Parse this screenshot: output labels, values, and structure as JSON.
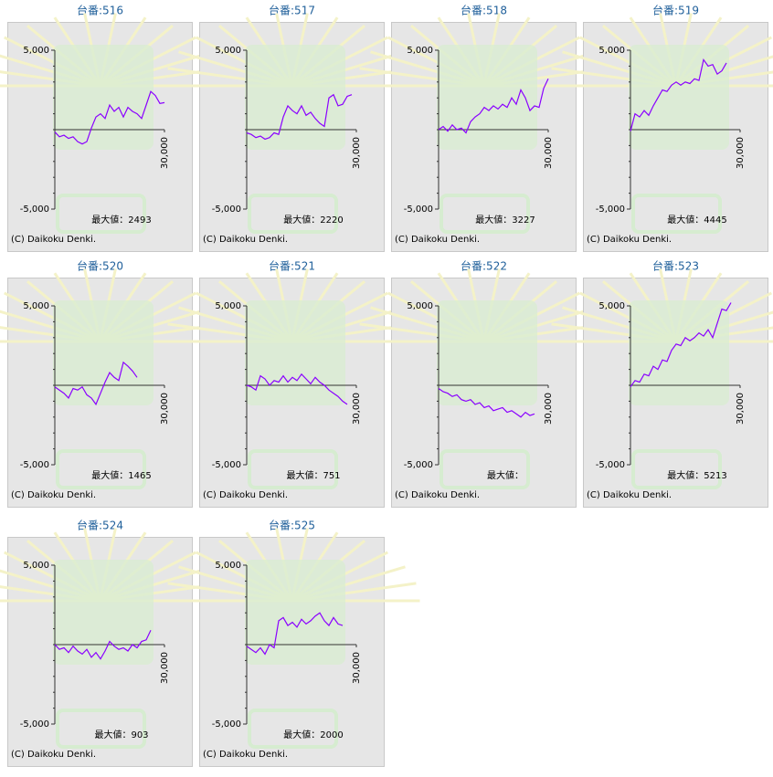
{
  "chart_data": [
    {
      "type": "line",
      "title": "台番:516",
      "annotation": "最大値：2493",
      "copyright": "(C) Daikoku Denki.",
      "color": "#8a00ff",
      "xlim": [
        0,
        30000
      ],
      "xticks": [
        {
          "value": 30000,
          "label": "30,000"
        }
      ],
      "ylim": [
        -5000,
        5000
      ],
      "yticks": [
        {
          "value": 5000,
          "label": "5,000"
        },
        {
          "value": -5000,
          "label": "-5,000"
        }
      ],
      "x": [
        0,
        1250,
        2500,
        3750,
        5000,
        6250,
        7500,
        8750,
        10000,
        11250,
        12500,
        13750,
        15000,
        16250,
        17500,
        18750,
        20000,
        21250,
        22500,
        23750,
        25000,
        26250,
        27500,
        28750,
        30000
      ],
      "values": [
        -150,
        -450,
        -350,
        -550,
        -450,
        -750,
        -900,
        -750,
        100,
        800,
        1000,
        700,
        1550,
        1150,
        1400,
        800,
        1400,
        1150,
        1000,
        700,
        1550,
        2400,
        2150,
        1650,
        1700
      ]
    },
    {
      "type": "line",
      "title": "台番:517",
      "annotation": "最大値：2220",
      "copyright": "(C) Daikoku Denki.",
      "color": "#8a00ff",
      "xlim": [
        0,
        30000
      ],
      "xticks": [
        {
          "value": 30000,
          "label": "30,000"
        }
      ],
      "ylim": [
        -5000,
        5000
      ],
      "yticks": [
        {
          "value": 5000,
          "label": "5,000"
        },
        {
          "value": -5000,
          "label": "-5,000"
        }
      ],
      "x": [
        0,
        1250,
        2500,
        3750,
        5000,
        6250,
        7500,
        8750,
        10000,
        11250,
        12500,
        13750,
        15000,
        16250,
        17500,
        18750,
        20000,
        21250,
        22500,
        23750,
        25000,
        26250,
        27500,
        28750
      ],
      "values": [
        -200,
        -300,
        -500,
        -400,
        -600,
        -500,
        -200,
        -300,
        800,
        1500,
        1200,
        1000,
        1500,
        900,
        1100,
        700,
        400,
        200,
        2000,
        2200,
        1500,
        1600,
        2100,
        2200
      ]
    },
    {
      "type": "line",
      "title": "台番:518",
      "annotation": "最大値：3227",
      "copyright": "(C) Daikoku Denki.",
      "color": "#8a00ff",
      "xlim": [
        0,
        30000
      ],
      "xticks": [
        {
          "value": 30000,
          "label": "30,000"
        }
      ],
      "ylim": [
        -5000,
        5000
      ],
      "yticks": [
        {
          "value": 5000,
          "label": "5,000"
        },
        {
          "value": -5000,
          "label": "-5,000"
        }
      ],
      "x": [
        0,
        1250,
        2500,
        3750,
        5000,
        6250,
        7500,
        8750,
        10000,
        11250,
        12500,
        13750,
        15000,
        16250,
        17500,
        18750,
        20000,
        21250,
        22500,
        23750,
        25000,
        26250,
        27500,
        28750,
        30000
      ],
      "values": [
        0,
        200,
        -100,
        300,
        0,
        100,
        -200,
        500,
        800,
        1000,
        1400,
        1200,
        1500,
        1300,
        1600,
        1400,
        2000,
        1600,
        2500,
        2000,
        1200,
        1500,
        1400,
        2600,
        3200
      ]
    },
    {
      "type": "line",
      "title": "台番:519",
      "annotation": "最大値：4445",
      "copyright": "(C) Daikoku Denki.",
      "color": "#8a00ff",
      "xlim": [
        0,
        30000
      ],
      "xticks": [
        {
          "value": 30000,
          "label": "30,000"
        }
      ],
      "ylim": [
        -5000,
        5000
      ],
      "yticks": [
        {
          "value": 5000,
          "label": "5,000"
        },
        {
          "value": -5000,
          "label": "-5,000"
        }
      ],
      "x": [
        0,
        1250,
        2500,
        3750,
        5000,
        6250,
        7500,
        8750,
        10000,
        11250,
        12500,
        13750,
        15000,
        16250,
        17500,
        18750,
        20000,
        21250,
        22500,
        23750,
        25000,
        26250
      ],
      "values": [
        -100,
        1000,
        800,
        1200,
        900,
        1500,
        2000,
        2500,
        2400,
        2800,
        3000,
        2800,
        3000,
        2900,
        3200,
        3100,
        4400,
        4000,
        4100,
        3500,
        3700,
        4200
      ]
    },
    {
      "type": "line",
      "title": "台番:520",
      "annotation": "最大値：1465",
      "copyright": "(C) Daikoku Denki.",
      "color": "#8a00ff",
      "xlim": [
        0,
        30000
      ],
      "xticks": [
        {
          "value": 30000,
          "label": "30,000"
        }
      ],
      "ylim": [
        -5000,
        5000
      ],
      "yticks": [
        {
          "value": 5000,
          "label": "5,000"
        },
        {
          "value": -5000,
          "label": "-5,000"
        }
      ],
      "x": [
        0,
        1250,
        2500,
        3750,
        5000,
        6250,
        7500,
        8750,
        10000,
        11250,
        12500,
        13750,
        15000,
        16250,
        17500,
        18750,
        20000,
        21250,
        22500
      ],
      "values": [
        -100,
        -300,
        -500,
        -800,
        -200,
        -300,
        -100,
        -600,
        -800,
        -1200,
        -500,
        200,
        800,
        500,
        300,
        1450,
        1200,
        900,
        500
      ]
    },
    {
      "type": "line",
      "title": "台番:521",
      "annotation": "最大値：751",
      "copyright": "(C) Daikoku Denki.",
      "color": "#8a00ff",
      "xlim": [
        0,
        30000
      ],
      "xticks": [
        {
          "value": 30000,
          "label": "30,000"
        }
      ],
      "ylim": [
        -5000,
        5000
      ],
      "yticks": [
        {
          "value": 5000,
          "label": "5,000"
        },
        {
          "value": -5000,
          "label": "-5,000"
        }
      ],
      "x": [
        0,
        1250,
        2500,
        3750,
        5000,
        6250,
        7500,
        8750,
        10000,
        11250,
        12500,
        13750,
        15000,
        16250,
        17500,
        18750,
        20000,
        21250,
        22500,
        23750,
        25000,
        26250,
        27500
      ],
      "values": [
        0,
        -100,
        -300,
        600,
        400,
        0,
        300,
        200,
        600,
        200,
        500,
        300,
        700,
        400,
        100,
        500,
        200,
        0,
        -300,
        -500,
        -700,
        -1000,
        -1200
      ]
    },
    {
      "type": "line",
      "title": "台番:522",
      "annotation": "最大値：",
      "copyright": "(C) Daikoku Denki.",
      "color": "#8a00ff",
      "xlim": [
        0,
        30000
      ],
      "xticks": [
        {
          "value": 30000,
          "label": "30,000"
        }
      ],
      "ylim": [
        -5000,
        5000
      ],
      "yticks": [
        {
          "value": 5000,
          "label": "5,000"
        },
        {
          "value": -5000,
          "label": "-5,000"
        }
      ],
      "x": [
        0,
        1250,
        2500,
        3750,
        5000,
        6250,
        7500,
        8750,
        10000,
        11250,
        12500,
        13750,
        15000,
        16250,
        17500,
        18750,
        20000,
        21250,
        22500,
        23750,
        25000,
        26250
      ],
      "values": [
        -200,
        -400,
        -500,
        -700,
        -600,
        -900,
        -1000,
        -900,
        -1200,
        -1100,
        -1400,
        -1300,
        -1600,
        -1500,
        -1400,
        -1700,
        -1600,
        -1800,
        -2000,
        -1700,
        -1900,
        -1800
      ]
    },
    {
      "type": "line",
      "title": "台番:523",
      "annotation": "最大値：5213",
      "copyright": "(C) Daikoku Denki.",
      "color": "#8a00ff",
      "xlim": [
        0,
        30000
      ],
      "xticks": [
        {
          "value": 30000,
          "label": "30,000"
        }
      ],
      "ylim": [
        -5000,
        5000
      ],
      "yticks": [
        {
          "value": 5000,
          "label": "5,000"
        },
        {
          "value": -5000,
          "label": "-5,000"
        }
      ],
      "x": [
        0,
        1250,
        2500,
        3750,
        5000,
        6250,
        7500,
        8750,
        10000,
        11250,
        12500,
        13750,
        15000,
        16250,
        17500,
        18750,
        20000,
        21250,
        22500,
        23750,
        25000,
        26250,
        27500
      ],
      "values": [
        -100,
        300,
        200,
        700,
        600,
        1200,
        1000,
        1600,
        1500,
        2200,
        2600,
        2500,
        3000,
        2800,
        3000,
        3300,
        3100,
        3500,
        3000,
        3900,
        4800,
        4700,
        5200
      ]
    },
    {
      "type": "line",
      "title": "台番:524",
      "annotation": "最大値：903",
      "copyright": "(C) Daikoku Denki.",
      "color": "#8a00ff",
      "xlim": [
        0,
        30000
      ],
      "xticks": [
        {
          "value": 30000,
          "label": "30,000"
        }
      ],
      "ylim": [
        -5000,
        5000
      ],
      "yticks": [
        {
          "value": 5000,
          "label": "5,000"
        },
        {
          "value": -5000,
          "label": "-5,000"
        }
      ],
      "x": [
        0,
        1250,
        2500,
        3750,
        5000,
        6250,
        7500,
        8750,
        10000,
        11250,
        12500,
        13750,
        15000,
        16250,
        17500,
        18750,
        20000,
        21250,
        22500,
        23750,
        25000,
        26250
      ],
      "values": [
        0,
        -300,
        -200,
        -500,
        -100,
        -400,
        -600,
        -300,
        -800,
        -500,
        -900,
        -400,
        200,
        -100,
        -300,
        -200,
        -400,
        0,
        -200,
        200,
        300,
        900
      ]
    },
    {
      "type": "line",
      "title": "台番:525",
      "annotation": "最大値：2000",
      "copyright": "(C) Daikoku Denki.",
      "color": "#8a00ff",
      "xlim": [
        0,
        30000
      ],
      "xticks": [
        {
          "value": 30000,
          "label": "30,000"
        }
      ],
      "ylim": [
        -5000,
        5000
      ],
      "yticks": [
        {
          "value": 5000,
          "label": "5,000"
        },
        {
          "value": -5000,
          "label": "-5,000"
        }
      ],
      "x": [
        0,
        1250,
        2500,
        3750,
        5000,
        6250,
        7500,
        8750,
        10000,
        11250,
        12500,
        13750,
        15000,
        16250,
        17500,
        18750,
        20000,
        21250,
        22500,
        23750,
        25000,
        26250
      ],
      "values": [
        -100,
        -300,
        -500,
        -200,
        -600,
        0,
        -200,
        1500,
        1700,
        1200,
        1400,
        1100,
        1600,
        1300,
        1500,
        1800,
        2000,
        1500,
        1200,
        1700,
        1300,
        1200
      ]
    }
  ]
}
